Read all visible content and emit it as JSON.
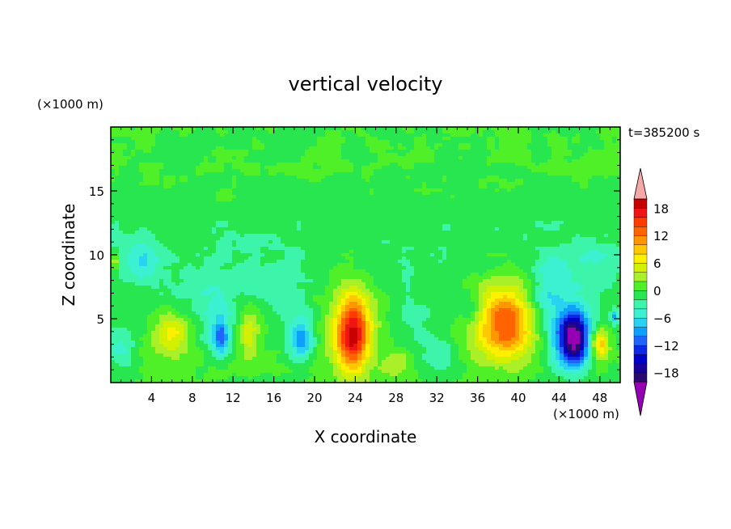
{
  "chart_data": {
    "type": "heatmap",
    "title": "vertical velocity",
    "xlabel": "X coordinate",
    "ylabel": "Z coordinate",
    "x_unit": "(×1000 m)",
    "y_unit": "(×1000 m)",
    "time_label": "t=385200 s",
    "xlim": [
      0,
      50
    ],
    "ylim": [
      0,
      20
    ],
    "x_ticks": [
      4,
      8,
      12,
      16,
      20,
      24,
      28,
      32,
      36,
      40,
      44,
      48
    ],
    "y_ticks": [
      5,
      10,
      15
    ],
    "colorbar": {
      "min": -20,
      "max": 20,
      "step": 2,
      "tick_values": [
        18,
        12,
        6,
        0,
        -6,
        -12,
        -18
      ],
      "tick_labels": [
        "18",
        "12",
        "6",
        "0",
        "−6",
        "−12",
        "−18"
      ],
      "colors": [
        "#2a0a6e",
        "#18009a",
        "#0000c8",
        "#0a28e6",
        "#1e64ff",
        "#0ea0ff",
        "#28d2f0",
        "#3cf0d2",
        "#3cf5aa",
        "#28e650",
        "#50f028",
        "#aaf028",
        "#d2f000",
        "#fff000",
        "#ffc800",
        "#ff9600",
        "#ff6400",
        "#ff3c00",
        "#f01414",
        "#c80000"
      ],
      "under_color": "#9600b4",
      "over_color": "#f4a8a8"
    },
    "features": [
      {
        "x": 23.8,
        "z": 3.8,
        "value": 14,
        "sx": 1.5,
        "sz": 2.6
      },
      {
        "x": 23.5,
        "z": 4.6,
        "value": 6,
        "sx": 2.4,
        "sz": 4.2
      },
      {
        "x": 38.8,
        "z": 4.6,
        "value": 10,
        "sx": 2.6,
        "sz": 2.6
      },
      {
        "x": 38.5,
        "z": 5.4,
        "value": 5,
        "sx": 3.6,
        "sz": 3.6
      },
      {
        "x": 45.5,
        "z": 3.3,
        "value": -16,
        "sx": 1.3,
        "sz": 1.9
      },
      {
        "x": 44.8,
        "z": 4.0,
        "value": -8,
        "sx": 2.4,
        "sz": 3.0
      },
      {
        "x": 48.0,
        "z": 3.0,
        "value": 10,
        "sx": 0.8,
        "sz": 1.2
      },
      {
        "x": 49.5,
        "z": 5.1,
        "value": -8,
        "sx": 0.4,
        "sz": 0.6
      },
      {
        "x": 6.0,
        "z": 3.8,
        "value": 7,
        "sx": 1.8,
        "sz": 1.6
      },
      {
        "x": 10.8,
        "z": 3.5,
        "value": -9,
        "sx": 0.8,
        "sz": 1.3
      },
      {
        "x": 10.5,
        "z": 4.5,
        "value": -4,
        "sx": 1.8,
        "sz": 2.2
      },
      {
        "x": 13.5,
        "z": 4.0,
        "value": 6,
        "sx": 1.0,
        "sz": 1.9
      },
      {
        "x": 18.8,
        "z": 3.3,
        "value": -7,
        "sx": 1.0,
        "sz": 1.4
      },
      {
        "x": 18.2,
        "z": 4.2,
        "value": -3,
        "sx": 1.9,
        "sz": 2.2
      },
      {
        "x": 28.0,
        "z": 1.6,
        "value": 4,
        "sx": 1.6,
        "sz": 1.0
      },
      {
        "x": 32.5,
        "z": 2.0,
        "value": -4,
        "sx": 1.4,
        "sz": 1.5
      },
      {
        "x": 1.0,
        "z": 2.8,
        "value": -4,
        "sx": 1.2,
        "sz": 1.7
      },
      {
        "x": 3.0,
        "z": 9.5,
        "value": -5,
        "sx": 1.8,
        "sz": 1.6
      },
      {
        "x": 0.4,
        "z": 9.5,
        "value": 6,
        "sx": 0.4,
        "sz": 0.8
      },
      {
        "x": 43.5,
        "z": 9.0,
        "value": -3,
        "sx": 1.6,
        "sz": 1.3
      },
      {
        "x": 42.5,
        "z": 6.8,
        "value": -4,
        "sx": 1.6,
        "sz": 1.6
      },
      {
        "x": 35.5,
        "z": 5.8,
        "value": -3,
        "sx": 1.2,
        "sz": 1.3
      },
      {
        "x": 9.0,
        "z": 7.5,
        "value": -3,
        "sx": 2.4,
        "sz": 1.5
      },
      {
        "x": 15.0,
        "z": 7.5,
        "value": -2.5,
        "sx": 2.8,
        "sz": 1.5
      },
      {
        "x": 30.0,
        "z": 4.5,
        "value": -2.5,
        "sx": 2.0,
        "sz": 2.0
      },
      {
        "x": 47.0,
        "z": 9.5,
        "value": -2.5,
        "sx": 2.2,
        "sz": 1.8
      }
    ]
  }
}
